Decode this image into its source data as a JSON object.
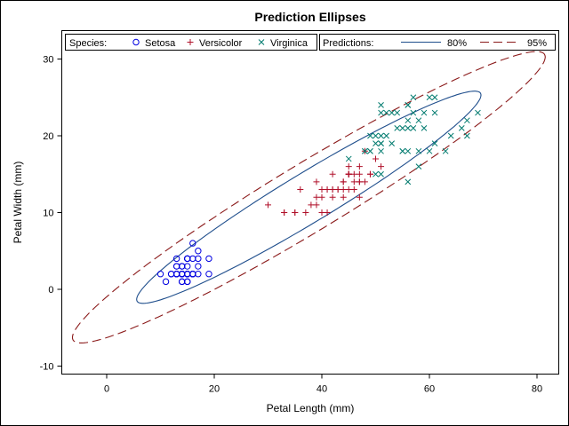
{
  "chart_data": {
    "type": "scatter",
    "title": "Prediction Ellipses",
    "xlabel": "Petal Length (mm)",
    "ylabel": "Petal Width (mm)",
    "xlim": [
      -8,
      84
    ],
    "ylim": [
      -11,
      34
    ],
    "xticks": [
      0,
      20,
      40,
      60,
      80
    ],
    "yticks": [
      -10,
      0,
      10,
      20,
      30
    ],
    "grid": false,
    "legend_position": "top-inside",
    "legend": {
      "species_title": "Species:",
      "predictions_title": "Predictions:"
    },
    "series": [
      {
        "name": "Setosa",
        "marker": "circle",
        "color": "#0000e0",
        "x": [
          14,
          14,
          13,
          15,
          14,
          17,
          14,
          15,
          14,
          15,
          15,
          16,
          14,
          11,
          12,
          15,
          13,
          14,
          17,
          15,
          17,
          15,
          10,
          17,
          19,
          16,
          16,
          15,
          14,
          16,
          16,
          15,
          15,
          14,
          15,
          12,
          13,
          14,
          13,
          15,
          13,
          13,
          13,
          16,
          19,
          14,
          16,
          14,
          15,
          14
        ],
        "y": [
          2,
          2,
          2,
          2,
          2,
          4,
          3,
          2,
          2,
          1,
          2,
          2,
          1,
          1,
          2,
          4,
          4,
          3,
          3,
          3,
          2,
          4,
          2,
          5,
          2,
          2,
          4,
          2,
          2,
          2,
          2,
          4,
          1,
          2,
          2,
          2,
          2,
          1,
          2,
          2,
          3,
          3,
          2,
          6,
          4,
          3,
          2,
          2,
          2,
          2
        ]
      },
      {
        "name": "Versicolor",
        "marker": "plus",
        "color": "#b0102a",
        "x": [
          47,
          45,
          49,
          40,
          46,
          45,
          47,
          33,
          46,
          39,
          35,
          42,
          40,
          47,
          36,
          44,
          45,
          41,
          45,
          39,
          48,
          40,
          49,
          47,
          43,
          44,
          48,
          50,
          45,
          35,
          38,
          37,
          39,
          51,
          45,
          45,
          47,
          44,
          41,
          40,
          44,
          46,
          40,
          33,
          42,
          42,
          42,
          43,
          30,
          41
        ],
        "y": [
          14,
          15,
          15,
          13,
          15,
          13,
          16,
          10,
          13,
          14,
          10,
          15,
          10,
          14,
          13,
          14,
          15,
          10,
          15,
          11,
          18,
          13,
          15,
          12,
          13,
          14,
          14,
          17,
          15,
          10,
          11,
          10,
          12,
          16,
          15,
          16,
          15,
          13,
          13,
          13,
          12,
          14,
          12,
          10,
          13,
          12,
          13,
          13,
          11,
          13
        ]
      },
      {
        "name": "Virginica",
        "marker": "x",
        "color": "#007a6e",
        "x": [
          60,
          51,
          59,
          56,
          58,
          66,
          45,
          63,
          58,
          61,
          51,
          53,
          55,
          50,
          51,
          53,
          55,
          67,
          69,
          50,
          57,
          49,
          67,
          49,
          57,
          60,
          48,
          49,
          56,
          58,
          61,
          64,
          56,
          51,
          56,
          61,
          56,
          55,
          48,
          54,
          56,
          51,
          51,
          59,
          57,
          52,
          50,
          52,
          54,
          51
        ],
        "y": [
          25,
          19,
          21,
          18,
          22,
          21,
          17,
          18,
          18,
          25,
          20,
          19,
          21,
          20,
          24,
          23,
          18,
          22,
          23,
          15,
          23,
          20,
          20,
          18,
          21,
          18,
          18,
          18,
          21,
          16,
          19,
          20,
          22,
          15,
          14,
          23,
          24,
          18,
          18,
          21,
          24,
          23,
          19,
          23,
          25,
          23,
          19,
          20,
          23,
          18
        ]
      }
    ],
    "ellipses": [
      {
        "name": "80%",
        "level": 0.8,
        "color": "#1f4e8c",
        "dash": "solid"
      },
      {
        "name": "95%",
        "level": 0.95,
        "color": "#8b1a1a",
        "dash": "dashed"
      }
    ]
  }
}
